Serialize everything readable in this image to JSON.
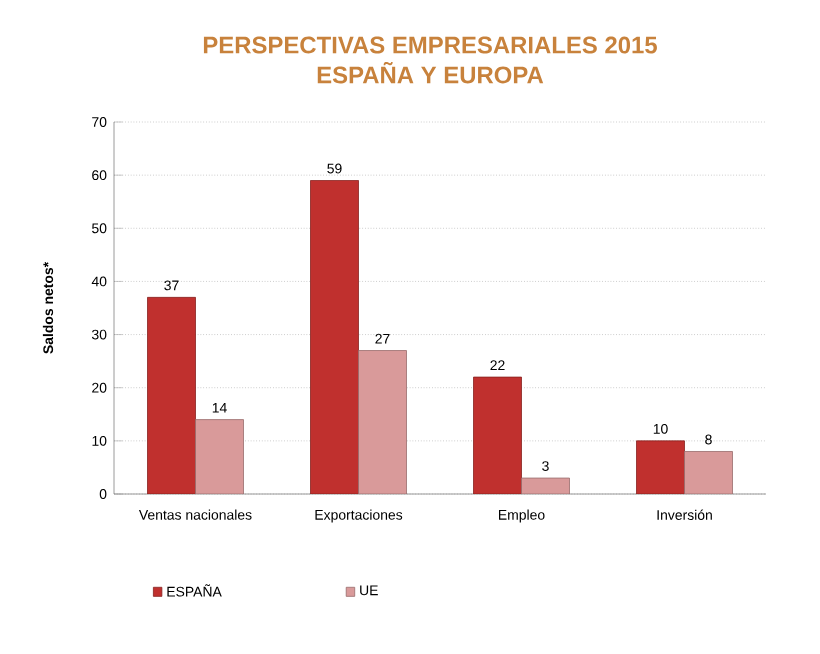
{
  "chart_data": {
    "type": "bar",
    "title": "PERSPECTIVAS EMPRESARIALES 2015\nESPAÑA Y EUROPA",
    "ylabel": "Saldos netos*",
    "categories": [
      "Ventas nacionales",
      "Exportaciones",
      "Empleo",
      "Inversión"
    ],
    "series": [
      {
        "name": "ESPAÑA",
        "color": "#c0302e",
        "values": [
          37,
          59,
          22,
          10
        ]
      },
      {
        "name": "UE",
        "color": "#d99a9a",
        "values": [
          14,
          27,
          3,
          8
        ]
      }
    ],
    "ylim": [
      0,
      70
    ],
    "yticks": [
      0,
      10,
      20,
      30,
      40,
      50,
      60,
      70
    ],
    "grid": "y",
    "legend": "bottom",
    "data_labels": true
  }
}
